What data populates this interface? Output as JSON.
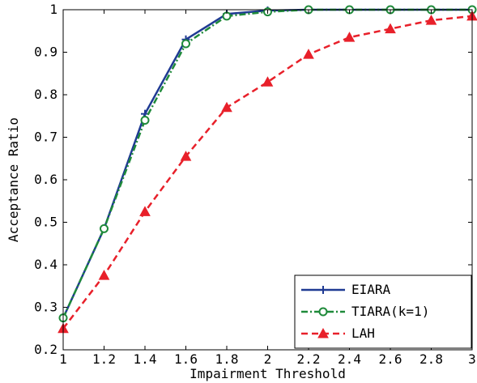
{
  "chart_data": {
    "type": "line",
    "title": "",
    "xlabel": "Impairment Threshold",
    "ylabel": "Acceptance Ratio",
    "xlim": [
      1,
      3
    ],
    "ylim": [
      0.2,
      1
    ],
    "xticks": [
      1,
      1.2,
      1.4,
      1.6,
      1.8,
      2,
      2.2,
      2.4,
      2.6,
      2.8,
      3
    ],
    "yticks": [
      0.2,
      0.3,
      0.4,
      0.5,
      0.6,
      0.7,
      0.8,
      0.9,
      1
    ],
    "xtick_labels": [
      "1",
      "1.2",
      "1.4",
      "1.6",
      "1.8",
      "2",
      "2.2",
      "2.4",
      "2.6",
      "2.8",
      "3"
    ],
    "ytick_labels": [
      "0.2",
      "0.3",
      "0.4",
      "0.5",
      "0.6",
      "0.7",
      "0.8",
      "0.9",
      "1"
    ],
    "grid": false,
    "legend_position": "bottom-right",
    "x": [
      1,
      1.2,
      1.4,
      1.6,
      1.8,
      2,
      2.2,
      2.4,
      2.6,
      2.8,
      3
    ],
    "series": [
      {
        "name": "EIARA",
        "values": [
          0.275,
          0.485,
          0.755,
          0.93,
          0.99,
          0.998,
          1.0,
          1.0,
          1.0,
          1.0,
          1.0
        ],
        "color": "#1f3a93",
        "dash": "solid",
        "marker": "plus"
      },
      {
        "name": "TIARA(k=1)",
        "values": [
          0.275,
          0.485,
          0.74,
          0.92,
          0.985,
          0.995,
          1.0,
          1.0,
          1.0,
          1.0,
          1.0
        ],
        "color": "#1f8a3a",
        "dash": "dashdot",
        "marker": "circle"
      },
      {
        "name": "LAH",
        "values": [
          0.25,
          0.375,
          0.525,
          0.655,
          0.77,
          0.83,
          0.895,
          0.935,
          0.955,
          0.975,
          0.985
        ],
        "color": "#e8202a",
        "dash": "dashed",
        "marker": "triangle"
      }
    ]
  }
}
